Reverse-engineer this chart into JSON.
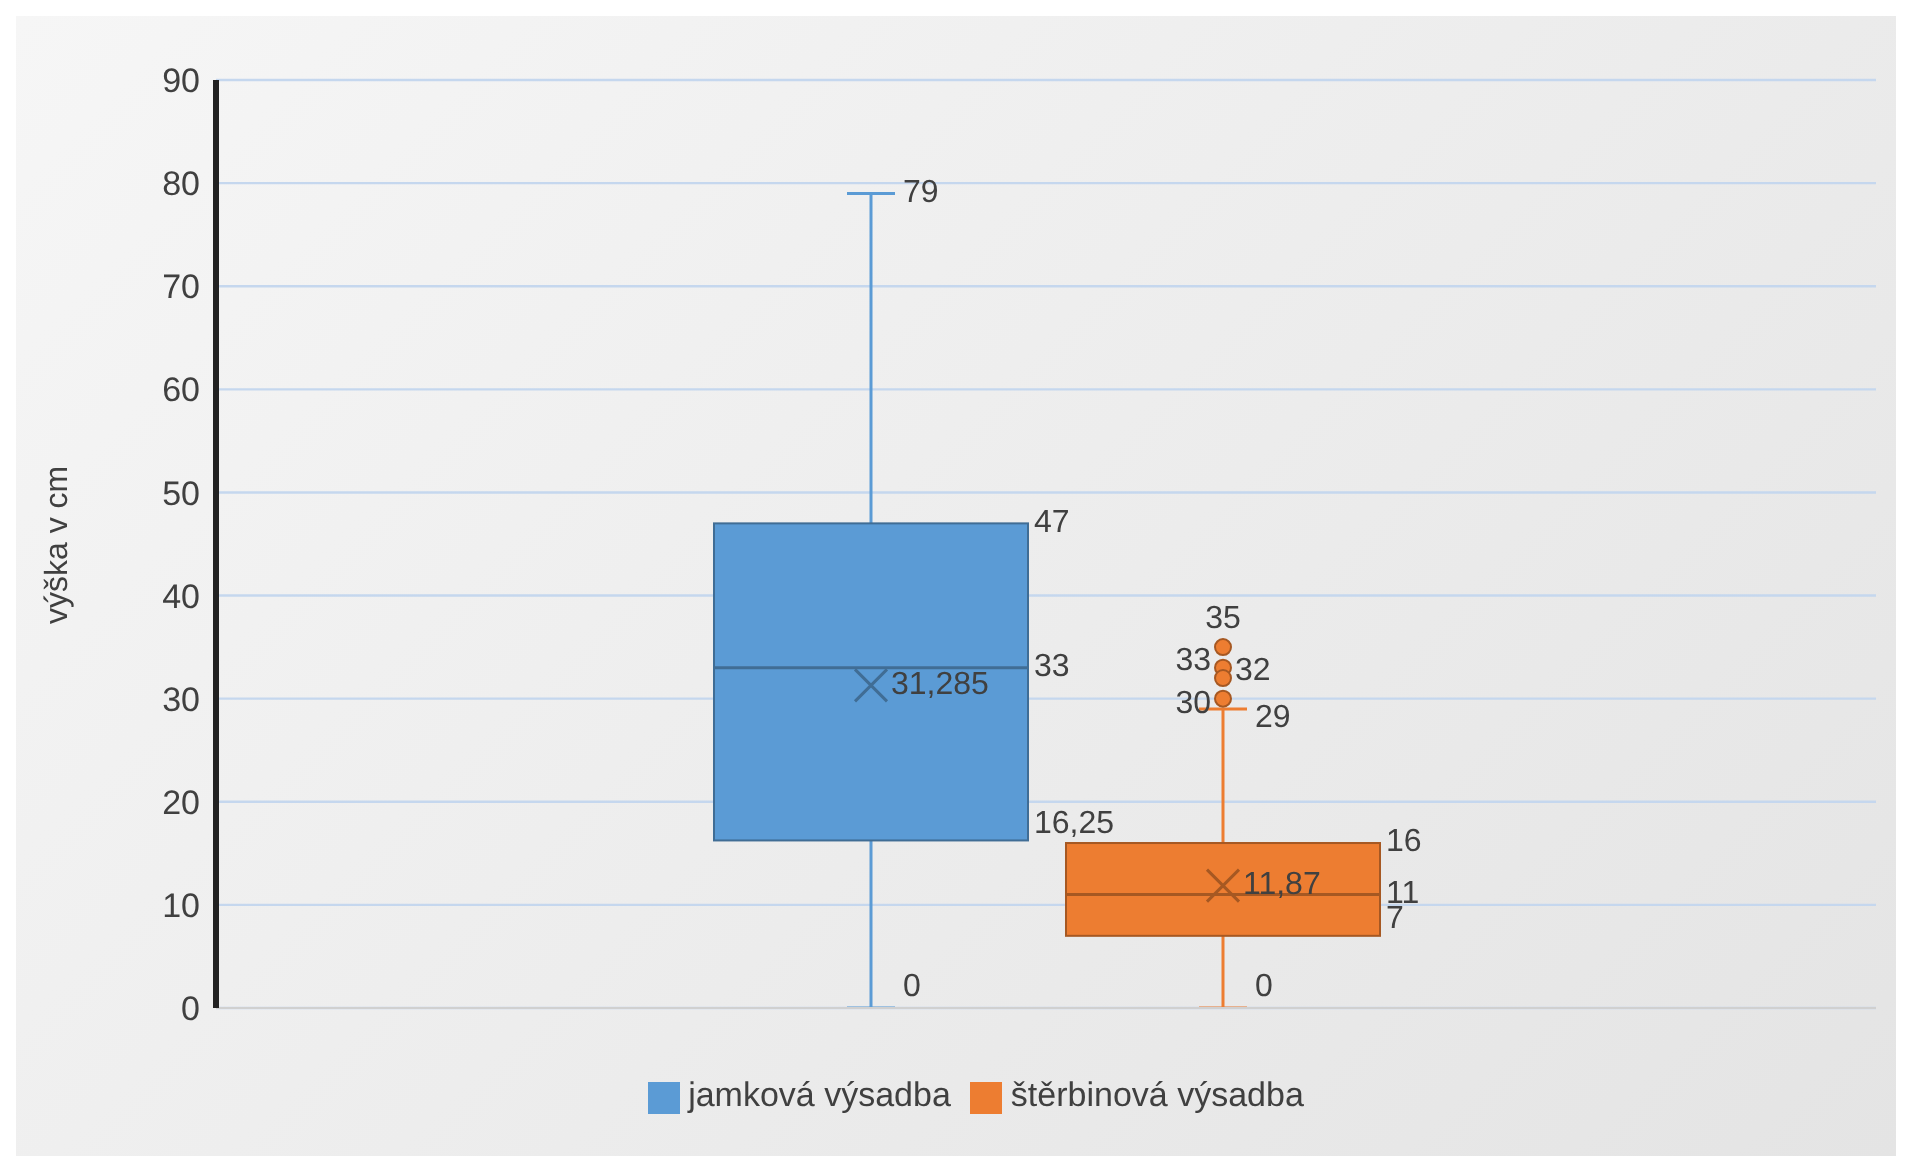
{
  "chart_data": {
    "type": "box",
    "ylabel": "výška v cm",
    "categories": [
      null
    ],
    "series": [
      {
        "name": "jamková výsadba",
        "color": "#5b9bd5",
        "boxes": [
          {
            "low": 0,
            "q1": 16.25,
            "median": 33,
            "q3": 47,
            "high": 79,
            "mean": 31.285
          }
        ]
      },
      {
        "name": "štěrbinová výsadba",
        "color": "#ed7d31",
        "boxes": [
          {
            "low": 0,
            "q1": 7,
            "median": 11,
            "q3": 16,
            "high": 29,
            "mean": 11.87,
            "outliers": [
              35,
              33,
              32,
              30
            ]
          }
        ]
      }
    ],
    "annotations": [
      "79",
      "47",
      "33",
      "16,25",
      "0",
      "31,285",
      "29",
      "16",
      "11",
      "7",
      "0",
      "11,87",
      "35",
      "33",
      "32",
      "30"
    ],
    "ylim": [
      0,
      90
    ],
    "yticks": [
      0,
      10,
      20,
      30,
      40,
      50,
      60,
      70,
      80,
      90
    ],
    "grid": "y",
    "legend": "bottom",
    "tick_labels": "y"
  }
}
